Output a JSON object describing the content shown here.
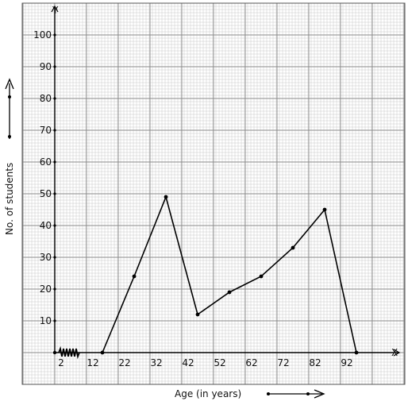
{
  "chart_data": {
    "type": "line",
    "xlabel": "Age (in years)",
    "ylabel": "No. of students",
    "x_axis_letter": "X",
    "y_axis_letter": "Y",
    "xlim": [
      -2,
      102
    ],
    "ylim": [
      -10,
      110
    ],
    "x_ticks": [
      2,
      12,
      22,
      32,
      42,
      52,
      62,
      72,
      82,
      92
    ],
    "x_tick_labels": [
      "2",
      "12",
      "22",
      "32",
      "42",
      "52",
      "62",
      "72",
      "82",
      "92"
    ],
    "y_ticks": [
      10,
      20,
      30,
      40,
      50,
      60,
      70,
      80,
      90,
      100
    ],
    "y_tick_labels": [
      "10",
      "20",
      "30",
      "40",
      "50",
      "60",
      "70",
      "80",
      "90",
      "100"
    ],
    "x_axis_break": true,
    "grid": true,
    "series": [
      {
        "x": [
          15,
          25,
          35,
          45,
          55,
          65,
          75,
          85,
          95
        ],
        "y": [
          0,
          24,
          49,
          12,
          19,
          24,
          33,
          45,
          0
        ]
      }
    ],
    "colors": {
      "grid_minor": "#c8c8c8",
      "grid_major": "#8a8a8a",
      "line": "#000000"
    }
  }
}
